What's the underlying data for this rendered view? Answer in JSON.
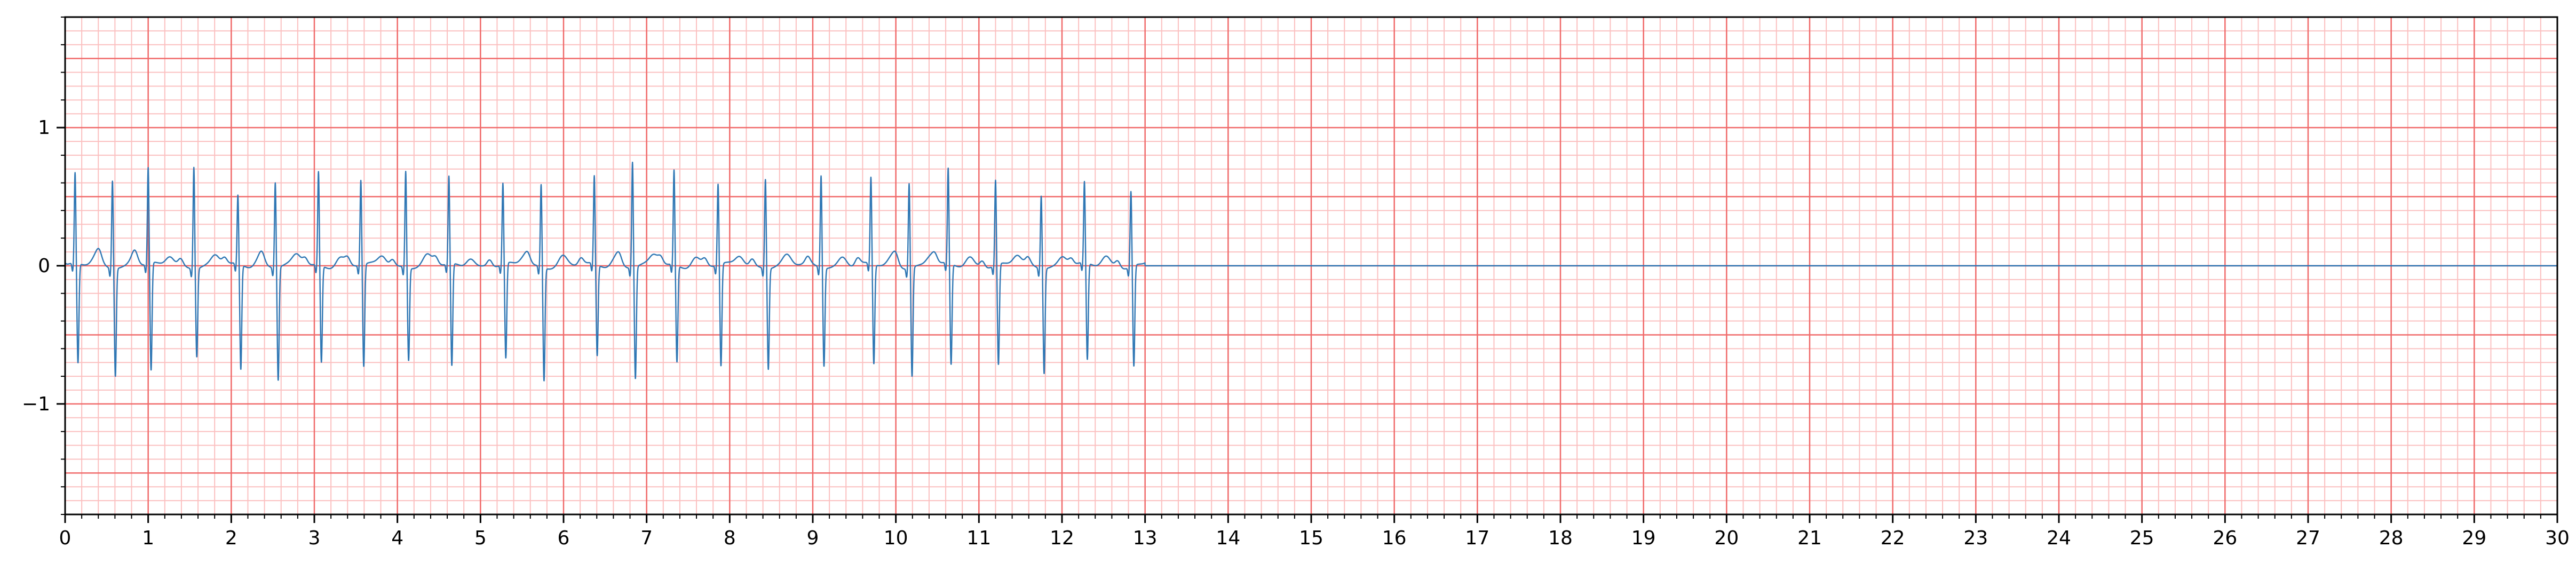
{
  "chart_data": {
    "type": "line",
    "title": "",
    "xlabel": "",
    "ylabel": "",
    "xlim": [
      0,
      30
    ],
    "ylim": [
      -1.8,
      1.8
    ],
    "grid": true,
    "x_ticks": [
      "0",
      "1",
      "2",
      "3",
      "4",
      "5",
      "6",
      "7",
      "8",
      "9",
      "10",
      "11",
      "12",
      "13",
      "14",
      "15",
      "16",
      "17",
      "18",
      "19",
      "20",
      "21",
      "22",
      "23",
      "24",
      "25",
      "26",
      "27",
      "28",
      "29",
      "30"
    ],
    "y_ticks": [
      {
        "value": -1,
        "label": "−1"
      },
      {
        "value": 0,
        "label": "0"
      },
      {
        "value": 1,
        "label": "1"
      }
    ],
    "colors": {
      "major_grid": "#f06a6a",
      "minor_grid": "#fbc0c0",
      "line": "#2f77b4"
    },
    "series": [
      {
        "signal_end": 13.0,
        "beats": [
          {
            "t": 0.12,
            "r": 0.66,
            "s": -0.72
          },
          {
            "t": 0.57,
            "r": 0.64,
            "s": -0.78
          },
          {
            "t": 1.0,
            "r": 0.7,
            "s": -0.78
          },
          {
            "t": 1.55,
            "r": 0.74,
            "s": -0.64
          },
          {
            "t": 2.08,
            "r": 0.5,
            "s": -0.76
          },
          {
            "t": 2.53,
            "r": 0.62,
            "s": -0.82
          },
          {
            "t": 3.05,
            "r": 0.68,
            "s": -0.7
          },
          {
            "t": 3.56,
            "r": 0.62,
            "s": -0.74
          },
          {
            "t": 4.1,
            "r": 0.7,
            "s": -0.67
          },
          {
            "t": 4.62,
            "r": 0.64,
            "s": -0.74
          },
          {
            "t": 5.27,
            "r": 0.59,
            "s": -0.69
          },
          {
            "t": 5.73,
            "r": 0.6,
            "s": -0.82
          },
          {
            "t": 6.37,
            "r": 0.64,
            "s": -0.66
          },
          {
            "t": 6.83,
            "r": 0.77,
            "s": -0.81
          },
          {
            "t": 7.33,
            "r": 0.69,
            "s": -0.7
          },
          {
            "t": 7.86,
            "r": 0.59,
            "s": -0.74
          },
          {
            "t": 8.43,
            "r": 0.65,
            "s": -0.73
          },
          {
            "t": 9.1,
            "r": 0.67,
            "s": -0.71
          },
          {
            "t": 9.7,
            "r": 0.63,
            "s": -0.72
          },
          {
            "t": 10.16,
            "r": 0.62,
            "s": -0.79
          },
          {
            "t": 10.63,
            "r": 0.69,
            "s": -0.73
          },
          {
            "t": 11.2,
            "r": 0.62,
            "s": -0.73
          },
          {
            "t": 11.75,
            "r": 0.53,
            "s": -0.76
          },
          {
            "t": 12.27,
            "r": 0.59,
            "s": -0.7
          },
          {
            "t": 12.83,
            "r": 0.55,
            "s": -0.73
          }
        ]
      }
    ]
  }
}
